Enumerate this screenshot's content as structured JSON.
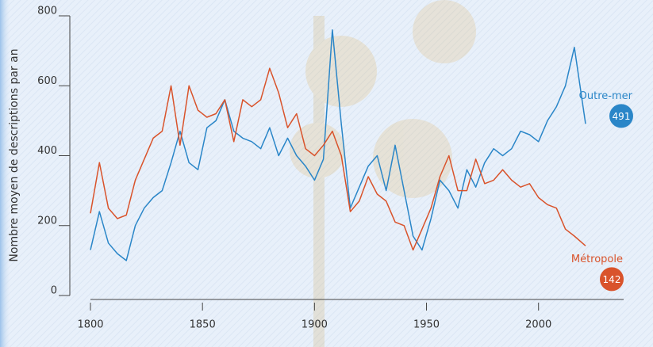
{
  "chart_data": {
    "type": "line",
    "y_label": "Nombre moyen de descriptions par an",
    "x": [
      1800,
      1804,
      1808,
      1812,
      1816,
      1820,
      1824,
      1828,
      1832,
      1836,
      1840,
      1844,
      1848,
      1852,
      1856,
      1860,
      1864,
      1868,
      1872,
      1876,
      1880,
      1884,
      1888,
      1892,
      1896,
      1900,
      1904,
      1908,
      1912,
      1916,
      1920,
      1924,
      1928,
      1932,
      1936,
      1940,
      1944,
      1948,
      1952,
      1956,
      1960,
      1964,
      1968,
      1972,
      1976,
      1980,
      1984,
      1988,
      1992,
      1996,
      2000,
      2004,
      2008,
      2012,
      2016,
      2021
    ],
    "series": [
      {
        "name": "Outre-mer",
        "color": "#2a86c8",
        "values": [
          130,
          240,
          150,
          120,
          100,
          200,
          250,
          280,
          300,
          380,
          470,
          380,
          360,
          480,
          500,
          560,
          470,
          450,
          440,
          420,
          480,
          400,
          450,
          400,
          370,
          330,
          390,
          760,
          490,
          250,
          310,
          370,
          400,
          300,
          430,
          300,
          170,
          130,
          220,
          330,
          300,
          250,
          360,
          310,
          380,
          420,
          400,
          420,
          470,
          460,
          440,
          500,
          540,
          600,
          710,
          491
        ]
      },
      {
        "name": "Métropole",
        "color": "#d9532b",
        "values": [
          235,
          380,
          250,
          220,
          230,
          330,
          390,
          450,
          470,
          600,
          430,
          600,
          530,
          510,
          520,
          560,
          440,
          560,
          540,
          560,
          650,
          580,
          480,
          520,
          420,
          400,
          430,
          470,
          400,
          240,
          270,
          340,
          290,
          270,
          210,
          200,
          130,
          190,
          250,
          340,
          400,
          300,
          300,
          390,
          320,
          330,
          360,
          330,
          310,
          320,
          280,
          260,
          250,
          190,
          170,
          142
        ]
      }
    ],
    "xlim": [
      1800,
      2038
    ],
    "xticks": [
      1800,
      1850,
      1900,
      1950,
      2000
    ],
    "ylim": [
      0,
      800
    ],
    "yticks": [
      0,
      200,
      400,
      600,
      800
    ]
  }
}
